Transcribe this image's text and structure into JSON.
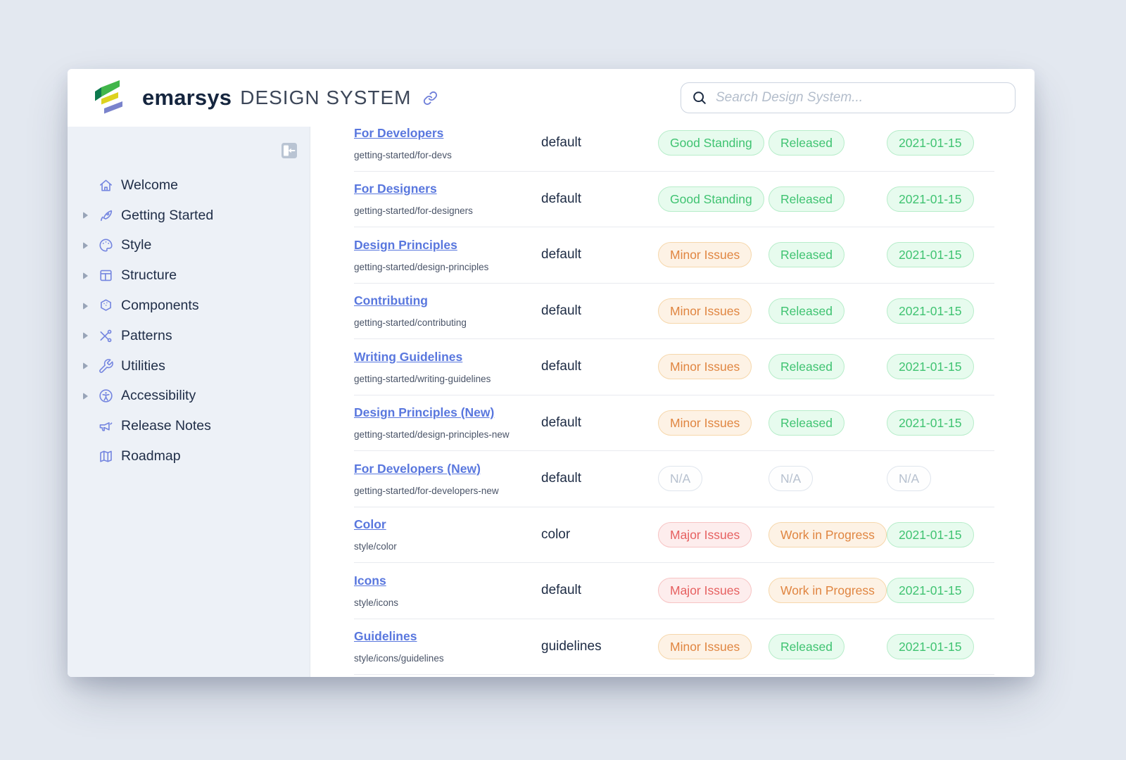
{
  "header": {
    "brand": "emarsys",
    "brand_suffix": "DESIGN SYSTEM",
    "search_placeholder": "Search Design System...",
    "logo_colors": {
      "green": "#41b64a",
      "dark_green": "#0d7a4e",
      "yellow": "#ddd21f",
      "purple": "#7a83cc"
    }
  },
  "sidebar": {
    "items": [
      {
        "label": "Welcome",
        "icon": "home-icon",
        "expandable": false
      },
      {
        "label": "Getting Started",
        "icon": "rocket-icon",
        "expandable": true
      },
      {
        "label": "Style",
        "icon": "palette-icon",
        "expandable": true
      },
      {
        "label": "Structure",
        "icon": "layout-icon",
        "expandable": true
      },
      {
        "label": "Components",
        "icon": "components-icon",
        "expandable": true
      },
      {
        "label": "Patterns",
        "icon": "patterns-icon",
        "expandable": true
      },
      {
        "label": "Utilities",
        "icon": "wrench-icon",
        "expandable": true
      },
      {
        "label": "Accessibility",
        "icon": "accessibility-icon",
        "expandable": true
      },
      {
        "label": "Release Notes",
        "icon": "megaphone-icon",
        "expandable": false
      },
      {
        "label": "Roadmap",
        "icon": "map-icon",
        "expandable": false
      }
    ]
  },
  "table": {
    "rows": [
      {
        "title": "For Developers",
        "path": "getting-started/for-devs",
        "variation": "default",
        "status": {
          "label": "Good Standing",
          "type": "success"
        },
        "release": {
          "label": "Released",
          "type": "success"
        },
        "date": {
          "label": "2021-01-15",
          "type": "success"
        }
      },
      {
        "title": "For Designers",
        "path": "getting-started/for-designers",
        "variation": "default",
        "status": {
          "label": "Good Standing",
          "type": "success"
        },
        "release": {
          "label": "Released",
          "type": "success"
        },
        "date": {
          "label": "2021-01-15",
          "type": "success"
        }
      },
      {
        "title": "Design Principles",
        "path": "getting-started/design-principles",
        "variation": "default",
        "status": {
          "label": "Minor Issues",
          "type": "warning"
        },
        "release": {
          "label": "Released",
          "type": "success"
        },
        "date": {
          "label": "2021-01-15",
          "type": "success"
        }
      },
      {
        "title": "Contributing",
        "path": "getting-started/contributing",
        "variation": "default",
        "status": {
          "label": "Minor Issues",
          "type": "warning"
        },
        "release": {
          "label": "Released",
          "type": "success"
        },
        "date": {
          "label": "2021-01-15",
          "type": "success"
        }
      },
      {
        "title": "Writing Guidelines",
        "path": "getting-started/writing-guidelines",
        "variation": "default",
        "status": {
          "label": "Minor Issues",
          "type": "warning"
        },
        "release": {
          "label": "Released",
          "type": "success"
        },
        "date": {
          "label": "2021-01-15",
          "type": "success"
        }
      },
      {
        "title": "Design Principles (New)",
        "path": "getting-started/design-principles-new",
        "variation": "default",
        "status": {
          "label": "Minor Issues",
          "type": "warning"
        },
        "release": {
          "label": "Released",
          "type": "success"
        },
        "date": {
          "label": "2021-01-15",
          "type": "success"
        }
      },
      {
        "title": "For Developers (New)",
        "path": "getting-started/for-developers-new",
        "variation": "default",
        "status": {
          "label": "N/A",
          "type": "na"
        },
        "release": {
          "label": "N/A",
          "type": "na"
        },
        "date": {
          "label": "N/A",
          "type": "na"
        }
      },
      {
        "title": "Color",
        "path": "style/color",
        "variation": "color",
        "status": {
          "label": "Major Issues",
          "type": "danger"
        },
        "release": {
          "label": "Work in Progress",
          "type": "warning"
        },
        "date": {
          "label": "2021-01-15",
          "type": "success"
        }
      },
      {
        "title": "Icons",
        "path": "style/icons",
        "variation": "default",
        "status": {
          "label": "Major Issues",
          "type": "danger"
        },
        "release": {
          "label": "Work in Progress",
          "type": "warning"
        },
        "date": {
          "label": "2021-01-15",
          "type": "success"
        }
      },
      {
        "title": "Guidelines",
        "path": "style/icons/guidelines",
        "variation": "guidelines",
        "status": {
          "label": "Minor Issues",
          "type": "warning"
        },
        "release": {
          "label": "Released",
          "type": "success"
        },
        "date": {
          "label": "2021-01-15",
          "type": "success"
        }
      }
    ]
  },
  "colors": {
    "accent_link": "#5977de",
    "sidebar_icon": "#7586e0",
    "badge": {
      "success": {
        "text": "#3fc371",
        "bg": "#e7fbee",
        "border": "#b7edca"
      },
      "warning": {
        "text": "#e08540",
        "bg": "#fdf2e5",
        "border": "#f6d7ab"
      },
      "danger": {
        "text": "#e66060",
        "bg": "#fdeded",
        "border": "#f7c3c3"
      },
      "na": {
        "text": "#b7c1cf",
        "bg": "#fefefe",
        "border": "#dfe5ed"
      }
    }
  }
}
